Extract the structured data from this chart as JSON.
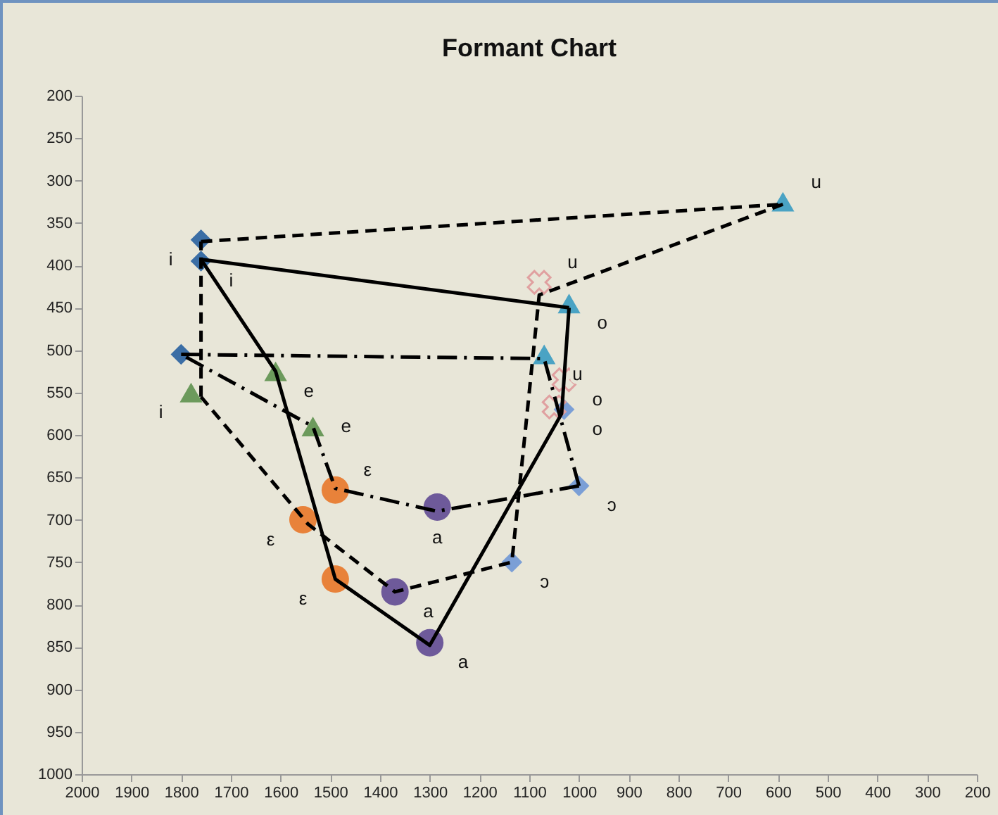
{
  "chart_data": {
    "type": "line",
    "title": "Formant Chart",
    "xlim": [
      2000,
      200
    ],
    "ylim": [
      1000,
      200
    ],
    "xticks": [
      2000,
      1900,
      1800,
      1700,
      1600,
      1500,
      1400,
      1300,
      1200,
      1100,
      1000,
      900,
      800,
      700,
      600,
      500,
      400,
      300,
      200
    ],
    "yticks": [
      200,
      250,
      300,
      350,
      400,
      450,
      500,
      550,
      600,
      650,
      700,
      750,
      800,
      850,
      900,
      950,
      1000
    ],
    "grid": false,
    "series": [
      {
        "color": "#000000",
        "line_style": "dashed",
        "marker": "none",
        "x": [
          1760,
          590
        ],
        "values": [
          372,
          328
        ]
      },
      {
        "color": "#000000",
        "line_style": "dashed",
        "marker": "none",
        "x": [
          590,
          1080,
          1135,
          1370,
          1545,
          1760
        ],
        "values": [
          328,
          435,
          750,
          785,
          705,
          555
        ]
      },
      {
        "color": "#000000",
        "line_style": "dashed",
        "marker": "none",
        "x": [
          1760,
          1760
        ],
        "values": [
          555,
          372
        ]
      },
      {
        "color": "#000000",
        "line_style": "solid",
        "marker": "none",
        "x": [
          1760,
          1610,
          1490,
          1300,
          1035,
          1020
        ],
        "values": [
          393,
          525,
          770,
          848,
          575,
          450
        ]
      },
      {
        "color": "#000000",
        "line_style": "solid",
        "marker": "none",
        "x": [
          1020,
          1760
        ],
        "values": [
          450,
          393
        ]
      },
      {
        "color": "#000000",
        "line_style": "dashdot",
        "marker": "none",
        "x": [
          1800,
          1070,
          1000
        ],
        "values": [
          505,
          510,
          660
        ]
      },
      {
        "color": "#000000",
        "line_style": "dashdot",
        "marker": "none",
        "x": [
          1000,
          1285,
          1490,
          1535,
          1800
        ],
        "values": [
          660,
          690,
          663,
          590,
          505
        ]
      },
      {
        "type": "scatter",
        "color": "#3b6ea5",
        "marker": "diamond",
        "x": [
          1760,
          1760,
          1800
        ],
        "values": [
          370,
          395,
          505
        ]
      },
      {
        "type": "scatter",
        "color": "#7b9fd6",
        "marker": "diamond",
        "x": [
          1030,
          1000,
          1135
        ],
        "values": [
          570,
          660,
          750
        ]
      },
      {
        "type": "scatter",
        "color": "#4aa3c4",
        "marker": "triangle",
        "x": [
          590,
          1020,
          1070
        ],
        "values": [
          325,
          445,
          505
        ]
      },
      {
        "type": "scatter",
        "color": "#6c9a5c",
        "marker": "triangle",
        "x": [
          1780,
          1610,
          1535
        ],
        "values": [
          550,
          525,
          590
        ]
      },
      {
        "type": "scatter",
        "color": "#e8823a",
        "marker": "circle",
        "x": [
          1490,
          1555,
          1490
        ],
        "values": [
          665,
          700,
          770
        ]
      },
      {
        "type": "scatter",
        "color": "#6e5a9a",
        "marker": "circle",
        "x": [
          1285,
          1370,
          1300
        ],
        "values": [
          685,
          785,
          845
        ]
      },
      {
        "type": "scatter",
        "color": "#e0a0a0",
        "marker": "cross",
        "x": [
          1080,
          1030,
          1050
        ],
        "values": [
          420,
          535,
          567
        ]
      }
    ],
    "annotations": [
      {
        "text": "i",
        "x": 1760,
        "y": 370
      },
      {
        "text": "i",
        "x": 1760,
        "y": 395
      },
      {
        "text": "i",
        "x": 1780,
        "y": 550
      },
      {
        "text": "u",
        "x": 590,
        "y": 325
      },
      {
        "text": "u",
        "x": 1080,
        "y": 420
      },
      {
        "text": "o",
        "x": 1020,
        "y": 445
      },
      {
        "text": "u",
        "x": 1070,
        "y": 505
      },
      {
        "text": "o",
        "x": 1030,
        "y": 535
      },
      {
        "text": "o",
        "x": 1030,
        "y": 570
      },
      {
        "text": "ɔ",
        "x": 1000,
        "y": 660
      },
      {
        "text": "ɔ",
        "x": 1135,
        "y": 750
      },
      {
        "text": "e",
        "x": 1610,
        "y": 525
      },
      {
        "text": "e",
        "x": 1535,
        "y": 590
      },
      {
        "text": "ε",
        "x": 1490,
        "y": 665
      },
      {
        "text": "ε",
        "x": 1555,
        "y": 700
      },
      {
        "text": "ε",
        "x": 1490,
        "y": 770
      },
      {
        "text": "a",
        "x": 1285,
        "y": 685
      },
      {
        "text": "a",
        "x": 1370,
        "y": 785
      },
      {
        "text": "a",
        "x": 1300,
        "y": 845
      }
    ]
  }
}
